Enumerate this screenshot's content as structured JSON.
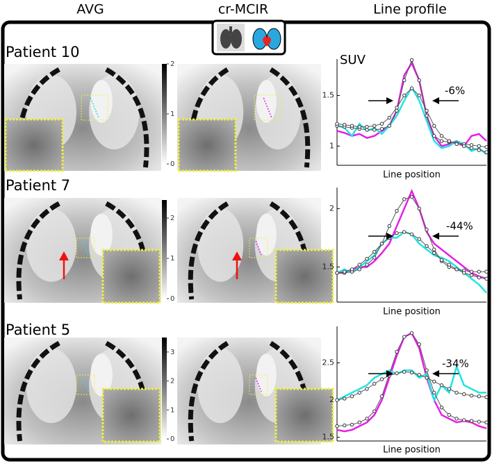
{
  "columns": [
    "AVG",
    "cr-MCIR",
    "Line profile"
  ],
  "rows": [
    {
      "label": "Patient 10",
      "colorbar": {
        "lim": [
          0,
          2
        ],
        "ticks": [
          0,
          1,
          2
        ]
      }
    },
    {
      "label": "Patient 7",
      "colorbar": {
        "lim": [
          0,
          2.45
        ],
        "ticks": [
          0,
          1,
          2
        ]
      }
    },
    {
      "label": "Patient 5",
      "colorbar": {
        "lim": [
          0,
          3.5
        ],
        "ticks": [
          0,
          1,
          2,
          3
        ]
      }
    }
  ],
  "chart_data": [
    {
      "type": "line",
      "ylabel": "SUV",
      "xlabel": "Line position",
      "annotation": "-6%",
      "x": [
        0,
        1,
        2,
        3,
        4,
        5,
        6,
        7,
        8,
        9,
        10,
        11,
        12,
        13,
        14,
        15,
        16,
        17,
        18,
        19,
        20
      ],
      "xlim": [
        0,
        20
      ],
      "ylim": [
        0.81,
        1.86
      ],
      "yticks": [
        1,
        1.5
      ],
      "series": [
        {
          "color": "#e61ee6",
          "values": [
            1.15,
            1.13,
            1.1,
            1.12,
            1.08,
            1.1,
            1.15,
            1.2,
            1.35,
            1.7,
            1.82,
            1.65,
            1.3,
            1.1,
            1.0,
            1.02,
            1.05,
            1.0,
            1.1,
            1.12,
            1.05
          ]
        },
        {
          "color": "#21e3e3",
          "values": [
            1.2,
            1.18,
            1.1,
            1.22,
            1.15,
            1.18,
            1.12,
            1.2,
            1.3,
            1.45,
            1.58,
            1.45,
            1.25,
            1.05,
            0.98,
            1.0,
            1.05,
            1.02,
            0.95,
            0.98,
            0.92
          ]
        },
        {
          "color": "#555555",
          "markers": true,
          "values": [
            1.2,
            1.19,
            1.18,
            1.17,
            1.16,
            1.16,
            1.17,
            1.2,
            1.35,
            1.65,
            1.85,
            1.65,
            1.3,
            1.1,
            1.05,
            1.04,
            1.03,
            1.02,
            1.01,
            1.0,
            0.99
          ]
        },
        {
          "color": "#555555",
          "markers": true,
          "values": [
            1.22,
            1.21,
            1.2,
            1.19,
            1.19,
            1.2,
            1.22,
            1.28,
            1.38,
            1.5,
            1.57,
            1.5,
            1.35,
            1.2,
            1.1,
            1.05,
            1.02,
            1.0,
            0.98,
            0.96,
            0.94
          ]
        }
      ]
    },
    {
      "type": "line",
      "xlabel": "Line position",
      "annotation": "-44%",
      "x": [
        0,
        1,
        2,
        3,
        4,
        5,
        6,
        7,
        8,
        9,
        10,
        11,
        12,
        13,
        14,
        15,
        16,
        17,
        18,
        19,
        20
      ],
      "xlim": [
        0,
        20
      ],
      "ylim": [
        1.2,
        2.18
      ],
      "yticks": [
        1.5,
        2
      ],
      "series": [
        {
          "color": "#e61ee6",
          "values": [
            1.45,
            1.45,
            1.48,
            1.5,
            1.5,
            1.55,
            1.62,
            1.7,
            1.85,
            2.0,
            2.15,
            2.0,
            1.8,
            1.7,
            1.65,
            1.6,
            1.55,
            1.5,
            1.45,
            1.42,
            1.4
          ]
        },
        {
          "color": "#21e3e3",
          "values": [
            1.45,
            1.48,
            1.45,
            1.5,
            1.55,
            1.6,
            1.7,
            1.75,
            1.75,
            1.8,
            1.78,
            1.7,
            1.65,
            1.6,
            1.58,
            1.55,
            1.5,
            1.45,
            1.4,
            1.35,
            1.28
          ]
        },
        {
          "color": "#555555",
          "markers": true,
          "values": [
            1.45,
            1.45,
            1.46,
            1.48,
            1.52,
            1.58,
            1.7,
            1.85,
            1.98,
            2.08,
            2.1,
            2.0,
            1.82,
            1.65,
            1.55,
            1.5,
            1.48,
            1.47,
            1.46,
            1.46,
            1.46
          ]
        },
        {
          "color": "#555555",
          "markers": true,
          "values": [
            1.45,
            1.46,
            1.48,
            1.52,
            1.57,
            1.63,
            1.7,
            1.75,
            1.79,
            1.8,
            1.78,
            1.74,
            1.68,
            1.62,
            1.56,
            1.52,
            1.48,
            1.45,
            1.43,
            1.41,
            1.4
          ]
        }
      ]
    },
    {
      "type": "line",
      "xlabel": "Line position",
      "annotation": "-34%",
      "x": [
        0,
        1,
        2,
        3,
        4,
        5,
        6,
        7,
        8,
        9,
        10,
        11,
        12,
        13,
        14,
        15,
        16,
        17,
        18,
        19,
        20
      ],
      "xlim": [
        0,
        20
      ],
      "ylim": [
        1.45,
        2.99
      ],
      "yticks": [
        1.5,
        2,
        2.5
      ],
      "series": [
        {
          "color": "#e61ee6",
          "values": [
            1.6,
            1.58,
            1.6,
            1.65,
            1.7,
            1.8,
            2.0,
            2.3,
            2.6,
            2.85,
            2.9,
            2.7,
            2.3,
            2.0,
            1.8,
            1.75,
            1.7,
            1.72,
            1.7,
            1.65,
            1.62
          ]
        },
        {
          "color": "#21e3e3",
          "values": [
            2.0,
            2.05,
            2.1,
            2.15,
            2.2,
            2.3,
            2.35,
            2.4,
            2.35,
            2.4,
            2.4,
            2.3,
            2.35,
            2.0,
            2.2,
            2.1,
            2.45,
            2.2,
            2.15,
            2.1,
            2.1
          ]
        },
        {
          "color": "#555555",
          "markers": true,
          "values": [
            1.65,
            1.66,
            1.67,
            1.7,
            1.75,
            1.85,
            2.05,
            2.35,
            2.65,
            2.85,
            2.9,
            2.75,
            2.4,
            2.1,
            1.9,
            1.8,
            1.75,
            1.73,
            1.72,
            1.71,
            1.7
          ]
        },
        {
          "color": "#555555",
          "markers": true,
          "values": [
            2.0,
            2.02,
            2.05,
            2.1,
            2.15,
            2.22,
            2.28,
            2.33,
            2.36,
            2.38,
            2.37,
            2.34,
            2.3,
            2.25,
            2.2,
            2.15,
            2.1,
            2.08,
            2.06,
            2.05,
            2.04
          ]
        }
      ]
    }
  ]
}
